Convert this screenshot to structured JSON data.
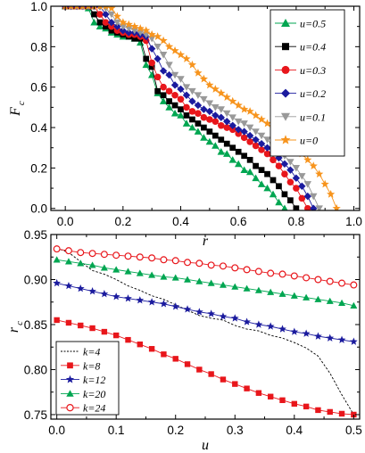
{
  "chart_data": [
    {
      "type": "line",
      "xlabel": "r",
      "ylabel": "F",
      "ylabel_sub": "c",
      "xlim": [
        -0.05,
        1.02
      ],
      "ylim": [
        -0.01,
        1.0
      ],
      "xticks": [
        "0.0",
        "0.2",
        "0.4",
        "0.6",
        "0.8",
        "1.0"
      ],
      "yticks": [
        "0.0",
        "0.2",
        "0.4",
        "0.6",
        "0.8",
        "1.0"
      ],
      "legend_position": "top-right",
      "series": [
        {
          "name": "u=0.5",
          "color": "#00a651",
          "marker": "triangle-up",
          "x": [
            0.0,
            0.02,
            0.04,
            0.06,
            0.08,
            0.1,
            0.12,
            0.14,
            0.16,
            0.18,
            0.2,
            0.22,
            0.24,
            0.26,
            0.28,
            0.3,
            0.32,
            0.34,
            0.36,
            0.38,
            0.4,
            0.42,
            0.44,
            0.46,
            0.48,
            0.5,
            0.52,
            0.54,
            0.56,
            0.58,
            0.6,
            0.62,
            0.64,
            0.66,
            0.68,
            0.7,
            0.72,
            0.74,
            0.76
          ],
          "y": [
            1.0,
            1.0,
            1.0,
            1.0,
            0.99,
            0.92,
            0.9,
            0.89,
            0.87,
            0.86,
            0.85,
            0.85,
            0.84,
            0.82,
            0.71,
            0.66,
            0.57,
            0.53,
            0.5,
            0.47,
            0.46,
            0.42,
            0.4,
            0.38,
            0.35,
            0.33,
            0.31,
            0.28,
            0.27,
            0.24,
            0.22,
            0.19,
            0.18,
            0.15,
            0.12,
            0.1,
            0.07,
            0.03,
            0.0
          ]
        },
        {
          "name": "u=0.4",
          "color": "#000000",
          "marker": "square",
          "x": [
            0.0,
            0.02,
            0.04,
            0.06,
            0.08,
            0.1,
            0.12,
            0.14,
            0.16,
            0.18,
            0.2,
            0.22,
            0.24,
            0.26,
            0.28,
            0.3,
            0.32,
            0.34,
            0.36,
            0.38,
            0.4,
            0.42,
            0.44,
            0.46,
            0.48,
            0.5,
            0.52,
            0.54,
            0.56,
            0.58,
            0.6,
            0.62,
            0.64,
            0.66,
            0.68,
            0.7,
            0.72,
            0.74,
            0.76,
            0.78,
            0.8
          ],
          "y": [
            1.0,
            1.0,
            1.0,
            1.0,
            1.0,
            0.96,
            0.92,
            0.9,
            0.88,
            0.87,
            0.86,
            0.85,
            0.84,
            0.84,
            0.74,
            0.7,
            0.58,
            0.56,
            0.53,
            0.51,
            0.49,
            0.46,
            0.44,
            0.42,
            0.4,
            0.38,
            0.36,
            0.34,
            0.32,
            0.3,
            0.28,
            0.26,
            0.24,
            0.21,
            0.19,
            0.17,
            0.14,
            0.11,
            0.07,
            0.04,
            0.0
          ]
        },
        {
          "name": "u=0.3",
          "color": "#e8161b",
          "marker": "circle",
          "x": [
            0.0,
            0.02,
            0.04,
            0.06,
            0.08,
            0.1,
            0.12,
            0.14,
            0.16,
            0.18,
            0.2,
            0.22,
            0.24,
            0.26,
            0.28,
            0.3,
            0.32,
            0.34,
            0.36,
            0.38,
            0.4,
            0.42,
            0.44,
            0.46,
            0.48,
            0.5,
            0.52,
            0.54,
            0.56,
            0.58,
            0.6,
            0.62,
            0.64,
            0.66,
            0.68,
            0.7,
            0.72,
            0.74,
            0.76,
            0.78,
            0.8,
            0.82,
            0.84
          ],
          "y": [
            1.0,
            1.0,
            1.0,
            1.0,
            1.0,
            1.0,
            0.96,
            0.92,
            0.9,
            0.88,
            0.87,
            0.86,
            0.86,
            0.85,
            0.83,
            0.72,
            0.65,
            0.6,
            0.58,
            0.56,
            0.54,
            0.5,
            0.48,
            0.47,
            0.45,
            0.44,
            0.43,
            0.41,
            0.4,
            0.39,
            0.37,
            0.35,
            0.33,
            0.31,
            0.29,
            0.27,
            0.24,
            0.21,
            0.17,
            0.13,
            0.1,
            0.05,
            0.0
          ]
        },
        {
          "name": "u=0.2",
          "color": "#1b1b9e",
          "marker": "diamond",
          "x": [
            0.0,
            0.02,
            0.04,
            0.06,
            0.08,
            0.1,
            0.12,
            0.14,
            0.16,
            0.18,
            0.2,
            0.22,
            0.24,
            0.26,
            0.28,
            0.3,
            0.32,
            0.34,
            0.36,
            0.38,
            0.4,
            0.42,
            0.44,
            0.46,
            0.48,
            0.5,
            0.52,
            0.54,
            0.56,
            0.58,
            0.6,
            0.62,
            0.64,
            0.66,
            0.68,
            0.7,
            0.72,
            0.74,
            0.76,
            0.78,
            0.8,
            0.82,
            0.84,
            0.86
          ],
          "y": [
            1.0,
            1.0,
            1.0,
            1.0,
            1.0,
            1.0,
            1.0,
            0.96,
            0.92,
            0.9,
            0.88,
            0.87,
            0.87,
            0.86,
            0.85,
            0.79,
            0.74,
            0.68,
            0.66,
            0.61,
            0.59,
            0.56,
            0.53,
            0.51,
            0.49,
            0.48,
            0.46,
            0.45,
            0.43,
            0.41,
            0.39,
            0.38,
            0.36,
            0.34,
            0.32,
            0.3,
            0.28,
            0.25,
            0.22,
            0.19,
            0.15,
            0.11,
            0.06,
            0.0
          ]
        },
        {
          "name": "u=0.1",
          "color": "#999999",
          "marker": "triangle-down",
          "x": [
            0.0,
            0.02,
            0.04,
            0.06,
            0.08,
            0.1,
            0.12,
            0.14,
            0.16,
            0.18,
            0.2,
            0.22,
            0.24,
            0.26,
            0.28,
            0.3,
            0.32,
            0.34,
            0.36,
            0.38,
            0.4,
            0.42,
            0.44,
            0.46,
            0.48,
            0.5,
            0.52,
            0.54,
            0.56,
            0.58,
            0.6,
            0.62,
            0.64,
            0.66,
            0.68,
            0.7,
            0.72,
            0.74,
            0.76,
            0.78,
            0.8,
            0.82,
            0.84,
            0.86,
            0.88
          ],
          "y": [
            1.0,
            1.0,
            1.0,
            1.0,
            1.0,
            1.0,
            1.0,
            0.99,
            0.96,
            0.92,
            0.9,
            0.89,
            0.88,
            0.87,
            0.86,
            0.84,
            0.8,
            0.76,
            0.71,
            0.66,
            0.64,
            0.6,
            0.58,
            0.56,
            0.54,
            0.52,
            0.5,
            0.49,
            0.47,
            0.45,
            0.43,
            0.42,
            0.4,
            0.38,
            0.36,
            0.34,
            0.31,
            0.29,
            0.26,
            0.23,
            0.2,
            0.16,
            0.12,
            0.06,
            0.0
          ]
        },
        {
          "name": "u=0",
          "color": "#f7941d",
          "marker": "star",
          "x": [
            0.0,
            0.02,
            0.04,
            0.06,
            0.08,
            0.1,
            0.12,
            0.14,
            0.16,
            0.18,
            0.2,
            0.22,
            0.24,
            0.26,
            0.28,
            0.3,
            0.32,
            0.34,
            0.36,
            0.38,
            0.4,
            0.42,
            0.44,
            0.46,
            0.48,
            0.5,
            0.52,
            0.54,
            0.56,
            0.58,
            0.6,
            0.62,
            0.64,
            0.66,
            0.68,
            0.7,
            0.72,
            0.74,
            0.76,
            0.78,
            0.8,
            0.82,
            0.84,
            0.86,
            0.88,
            0.9,
            0.92,
            0.94
          ],
          "y": [
            1.0,
            1.0,
            1.0,
            1.0,
            1.0,
            1.0,
            1.0,
            1.0,
            0.99,
            0.95,
            0.92,
            0.91,
            0.9,
            0.89,
            0.88,
            0.86,
            0.85,
            0.83,
            0.8,
            0.78,
            0.76,
            0.74,
            0.71,
            0.67,
            0.64,
            0.61,
            0.59,
            0.57,
            0.55,
            0.53,
            0.51,
            0.49,
            0.48,
            0.46,
            0.44,
            0.42,
            0.4,
            0.38,
            0.35,
            0.32,
            0.3,
            0.27,
            0.24,
            0.21,
            0.17,
            0.12,
            0.07,
            0.0
          ]
        }
      ]
    },
    {
      "type": "line",
      "xlabel": "u",
      "ylabel": "r",
      "ylabel_sub": "c",
      "xlim": [
        -0.01,
        0.51
      ],
      "ylim": [
        0.745,
        0.95
      ],
      "xticks": [
        "0.0",
        "0.1",
        "0.2",
        "0.3",
        "0.4",
        "0.5"
      ],
      "yticks": [
        "0.75",
        "0.80",
        "0.85",
        "0.90",
        "0.95"
      ],
      "legend_position": "bottom-left",
      "series": [
        {
          "name": "k=4",
          "color": "#000000",
          "marker": "none",
          "dashed": true,
          "x": [
            0.0,
            0.02,
            0.04,
            0.06,
            0.08,
            0.1,
            0.12,
            0.14,
            0.16,
            0.18,
            0.2,
            0.22,
            0.24,
            0.26,
            0.28,
            0.3,
            0.32,
            0.34,
            0.36,
            0.38,
            0.4,
            0.42,
            0.44,
            0.46,
            0.48,
            0.5
          ],
          "y": [
            0.935,
            0.93,
            0.92,
            0.91,
            0.906,
            0.9,
            0.893,
            0.888,
            0.882,
            0.878,
            0.872,
            0.866,
            0.86,
            0.857,
            0.855,
            0.849,
            0.845,
            0.843,
            0.838,
            0.835,
            0.83,
            0.824,
            0.815,
            0.796,
            0.772,
            0.75
          ]
        },
        {
          "name": "k=8",
          "color": "#e8161b",
          "marker": "square",
          "x": [
            0.0,
            0.02,
            0.04,
            0.06,
            0.08,
            0.1,
            0.12,
            0.14,
            0.16,
            0.18,
            0.2,
            0.22,
            0.24,
            0.26,
            0.28,
            0.3,
            0.32,
            0.34,
            0.36,
            0.38,
            0.4,
            0.42,
            0.44,
            0.46,
            0.48,
            0.5
          ],
          "y": [
            0.855,
            0.852,
            0.849,
            0.846,
            0.842,
            0.838,
            0.833,
            0.828,
            0.823,
            0.817,
            0.812,
            0.806,
            0.8,
            0.795,
            0.789,
            0.784,
            0.779,
            0.774,
            0.77,
            0.766,
            0.762,
            0.759,
            0.755,
            0.753,
            0.751,
            0.75
          ]
        },
        {
          "name": "k=12",
          "color": "#1b1b9e",
          "marker": "star",
          "x": [
            0.0,
            0.02,
            0.04,
            0.06,
            0.08,
            0.1,
            0.12,
            0.14,
            0.16,
            0.18,
            0.2,
            0.22,
            0.24,
            0.26,
            0.28,
            0.3,
            0.32,
            0.34,
            0.36,
            0.38,
            0.4,
            0.42,
            0.44,
            0.46,
            0.48,
            0.5
          ],
          "y": [
            0.896,
            0.893,
            0.89,
            0.887,
            0.884,
            0.881,
            0.879,
            0.877,
            0.875,
            0.873,
            0.87,
            0.867,
            0.864,
            0.862,
            0.859,
            0.857,
            0.853,
            0.85,
            0.848,
            0.845,
            0.842,
            0.84,
            0.837,
            0.835,
            0.833,
            0.831
          ]
        },
        {
          "name": "k=20",
          "color": "#00a651",
          "marker": "triangle-up",
          "x": [
            0.0,
            0.02,
            0.04,
            0.06,
            0.08,
            0.1,
            0.12,
            0.14,
            0.16,
            0.18,
            0.2,
            0.22,
            0.24,
            0.26,
            0.28,
            0.3,
            0.32,
            0.34,
            0.36,
            0.38,
            0.4,
            0.42,
            0.44,
            0.46,
            0.48,
            0.5
          ],
          "y": [
            0.922,
            0.92,
            0.918,
            0.916,
            0.913,
            0.911,
            0.909,
            0.907,
            0.905,
            0.903,
            0.902,
            0.9,
            0.898,
            0.896,
            0.894,
            0.892,
            0.89,
            0.888,
            0.886,
            0.884,
            0.882,
            0.88,
            0.878,
            0.876,
            0.874,
            0.871
          ]
        },
        {
          "name": "k=24",
          "color": "#e8161b",
          "marker": "open-circle",
          "x": [
            0.0,
            0.02,
            0.04,
            0.06,
            0.08,
            0.1,
            0.12,
            0.14,
            0.16,
            0.18,
            0.2,
            0.22,
            0.24,
            0.26,
            0.28,
            0.3,
            0.32,
            0.34,
            0.36,
            0.38,
            0.4,
            0.42,
            0.44,
            0.46,
            0.48,
            0.5
          ],
          "y": [
            0.934,
            0.932,
            0.93,
            0.929,
            0.928,
            0.927,
            0.926,
            0.925,
            0.924,
            0.922,
            0.921,
            0.919,
            0.918,
            0.916,
            0.915,
            0.913,
            0.911,
            0.909,
            0.907,
            0.906,
            0.904,
            0.902,
            0.9,
            0.898,
            0.896,
            0.894
          ]
        }
      ]
    }
  ]
}
